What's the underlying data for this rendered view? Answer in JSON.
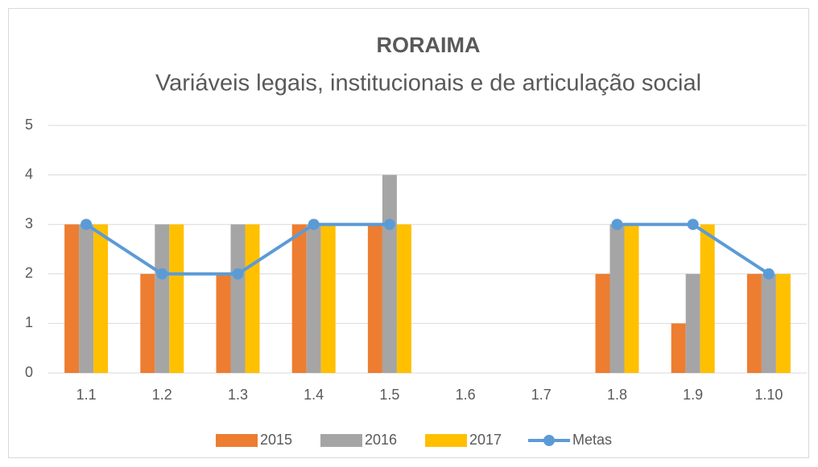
{
  "chart_data": {
    "type": "bar",
    "title": "RORAIMA",
    "subtitle": "Variáveis legais, institucionais e de articulação social",
    "categories": [
      "1.1",
      "1.2",
      "1.3",
      "1.4",
      "1.5",
      "1.6",
      "1.7",
      "1.8",
      "1.9",
      "1.10"
    ],
    "series": [
      {
        "name": "2015",
        "color": "#ed7d31",
        "type": "bar",
        "values": [
          3,
          2,
          2,
          3,
          3,
          null,
          null,
          2,
          1,
          2
        ]
      },
      {
        "name": "2016",
        "color": "#a5a5a5",
        "type": "bar",
        "values": [
          3,
          3,
          3,
          3,
          4,
          null,
          null,
          3,
          2,
          2
        ]
      },
      {
        "name": "2017",
        "color": "#ffc000",
        "type": "bar",
        "values": [
          3,
          3,
          3,
          3,
          3,
          null,
          null,
          3,
          3,
          2
        ]
      },
      {
        "name": "Metas",
        "color": "#5b9bd5",
        "type": "line",
        "values": [
          3,
          2,
          2,
          3,
          3,
          null,
          null,
          3,
          3,
          2
        ]
      }
    ],
    "ylim": [
      0,
      5
    ],
    "yticks": [
      0,
      1,
      2,
      3,
      4,
      5
    ],
    "grid": true,
    "legend": "bottom"
  }
}
